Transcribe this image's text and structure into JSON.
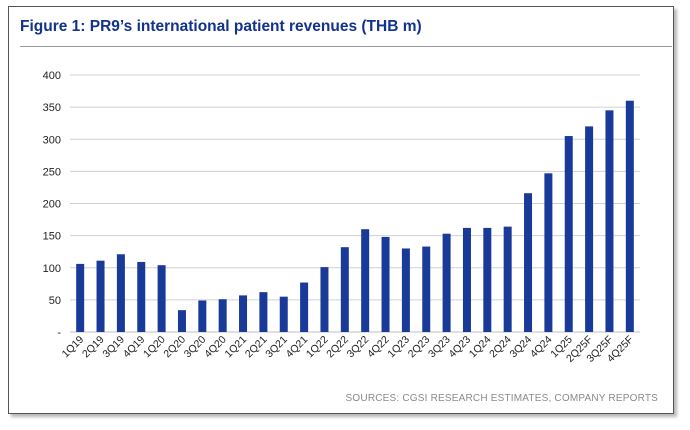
{
  "figure": {
    "title": "Figure 1: PR9’s international patient revenues (THB m)",
    "source": "SOURCES: CGSI RESEARCH ESTIMATES, COMPANY REPORTS"
  },
  "colors": {
    "bar": "#1a3a99",
    "title": "#12328c",
    "grid": "#d0d0d0"
  },
  "chart_data": {
    "type": "bar",
    "title": "PR9’s international patient revenues (THB m)",
    "xlabel": "",
    "ylabel": "",
    "ylim": [
      0,
      400
    ],
    "yticks": [
      0,
      50,
      100,
      150,
      200,
      250,
      300,
      350,
      400
    ],
    "ytick_labels": [
      "-",
      "50",
      "100",
      "150",
      "200",
      "250",
      "300",
      "350",
      "400"
    ],
    "grid": true,
    "categories": [
      "1Q19",
      "2Q19",
      "3Q19",
      "4Q19",
      "1Q20",
      "2Q20",
      "3Q20",
      "4Q20",
      "1Q21",
      "2Q21",
      "3Q21",
      "4Q21",
      "1Q22",
      "2Q22",
      "3Q22",
      "4Q22",
      "1Q23",
      "2Q23",
      "3Q23",
      "4Q23",
      "1Q24",
      "2Q24",
      "3Q24",
      "4Q24",
      "1Q25",
      "2Q25F",
      "3Q25F",
      "4Q25F"
    ],
    "values": [
      106,
      111,
      121,
      109,
      104,
      34,
      49,
      51,
      57,
      62,
      55,
      77,
      101,
      132,
      160,
      148,
      130,
      133,
      153,
      162,
      162,
      164,
      216,
      247,
      305,
      320,
      345,
      360
    ]
  }
}
